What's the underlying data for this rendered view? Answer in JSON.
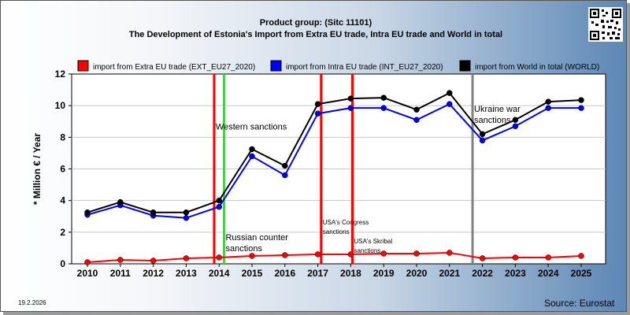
{
  "header": {
    "title_line1": "Product group:  (Sitc 11101)",
    "title_line2": "The Development of Estonia's Import from Extra EU trade, Intra EU trade and World in total"
  },
  "footer": {
    "date": "19.2.2026",
    "source": "Source: Eurostat"
  },
  "chart_data": {
    "type": "line",
    "ylabel": "* Million € / Year",
    "ylim": [
      0,
      12
    ],
    "yticks": [
      "0",
      "2",
      "4",
      "6",
      "8",
      "10",
      "12"
    ],
    "categories": [
      "2010",
      "2011",
      "2012",
      "2013",
      "2014",
      "2015",
      "2016",
      "2017",
      "2018",
      "2019",
      "2020",
      "2021",
      "2022",
      "2023",
      "2024",
      "2025"
    ],
    "grid": "horizontal",
    "legend_position": "top",
    "series": [
      {
        "name": "import from Extra EU trade (EXT_EU27_2020)",
        "color": "#ff0000",
        "values": [
          0.1,
          0.25,
          0.2,
          0.35,
          0.4,
          0.5,
          0.55,
          0.6,
          0.6,
          0.65,
          0.65,
          0.7,
          0.35,
          0.4,
          0.4,
          0.5
        ]
      },
      {
        "name": "import from Intra EU trade (INT_EU27_2020)",
        "color": "#0000ff",
        "values": [
          3.1,
          3.7,
          3.05,
          2.9,
          3.6,
          6.8,
          5.6,
          9.5,
          9.85,
          9.85,
          9.1,
          10.1,
          7.8,
          8.7,
          9.85,
          9.85
        ]
      },
      {
        "name": "import from World in total (WORLD)",
        "color": "#000000",
        "values": [
          3.25,
          3.9,
          3.25,
          3.25,
          4.0,
          7.25,
          6.2,
          10.1,
          10.45,
          10.5,
          9.75,
          10.8,
          8.2,
          9.1,
          10.25,
          10.35
        ]
      }
    ],
    "events": [
      {
        "x": 2013.85,
        "color": "#ff0000",
        "label": "Western sanctions",
        "label_value": 8.5,
        "size": "big"
      },
      {
        "x": 2014.15,
        "color": "#00ff00",
        "label_lines": [
          "Russian counter",
          "sanctions"
        ],
        "label_value": 1.5,
        "size": "big"
      },
      {
        "x": 2017.1,
        "color": "#ff0000",
        "label_lines": [
          "USA's Congress",
          "sanctions"
        ],
        "label_value": 2.5,
        "size": "small"
      },
      {
        "x": 2018.05,
        "color": "#ff0000",
        "label_lines": [
          "USA's Skribal",
          "sanctions"
        ],
        "label_value": 1.3,
        "size": "small"
      },
      {
        "x": 2021.7,
        "color": "#808080",
        "label_lines": [
          "Ukraine war",
          "sanctions"
        ],
        "label_value": 9.6,
        "size": "big"
      }
    ]
  }
}
